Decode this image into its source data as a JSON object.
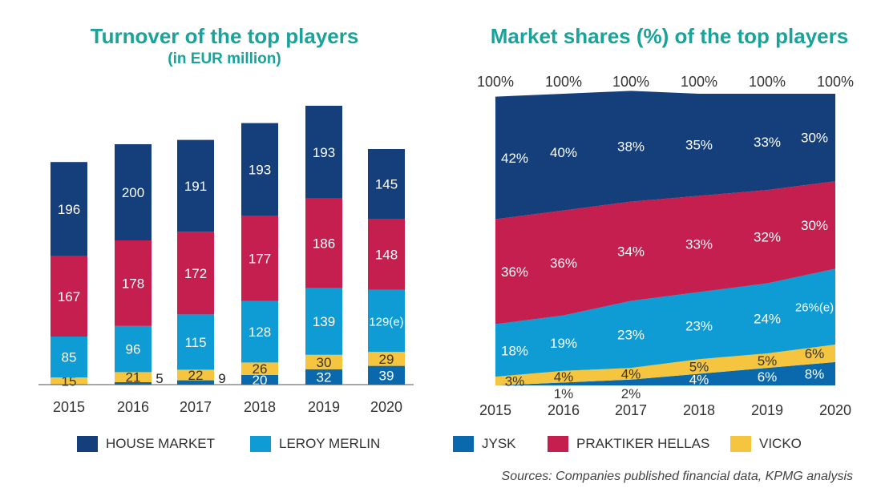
{
  "colors": {
    "house_market": "#143f7a",
    "leroy_merlin": "#0f9bd3",
    "jysk": "#0a68ad",
    "praktiker_hellas": "#c41f4e",
    "vicko": "#f5c540",
    "title": "#1aa39a"
  },
  "chart_data": [
    {
      "type": "bar",
      "stacked": true,
      "title": "Turnover of the top players",
      "subtitle": "(in EUR million)",
      "categories": [
        "2015",
        "2016",
        "2017",
        "2018",
        "2019",
        "2020"
      ],
      "series": [
        {
          "name": "JYSK",
          "values": [
            null,
            5,
            9,
            20,
            32,
            39
          ],
          "labels": [
            "",
            "5",
            "9",
            "20",
            "32",
            "39"
          ]
        },
        {
          "name": "VICKO",
          "values": [
            15,
            21,
            22,
            26,
            30,
            29
          ],
          "labels": [
            "15",
            "21",
            "22",
            "26",
            "30",
            "29"
          ]
        },
        {
          "name": "LEROY MERLIN",
          "values": [
            85,
            96,
            115,
            128,
            139,
            129
          ],
          "labels": [
            "85",
            "96",
            "115",
            "128",
            "139",
            "129(e)"
          ]
        },
        {
          "name": "PRAKTIKER HELLAS",
          "values": [
            167,
            178,
            172,
            177,
            186,
            148
          ],
          "labels": [
            "167",
            "178",
            "172",
            "177",
            "186",
            "148"
          ]
        },
        {
          "name": "HOUSE MARKET",
          "values": [
            196,
            200,
            191,
            193,
            193,
            145
          ],
          "labels": [
            "196",
            "200",
            "191",
            "193",
            "193",
            "145"
          ]
        }
      ]
    },
    {
      "type": "area",
      "stacked": true,
      "title": "Market shares (%) of the top players",
      "categories": [
        "2015",
        "2016",
        "2017",
        "2018",
        "2019",
        "2020"
      ],
      "totals": [
        "100%",
        "100%",
        "100%",
        "100%",
        "100%",
        "100%"
      ],
      "series": [
        {
          "name": "JYSK",
          "values": [
            0,
            1,
            2,
            4,
            6,
            8
          ],
          "labels": [
            "",
            "1%",
            "2%",
            "4%",
            "6%",
            "8%"
          ]
        },
        {
          "name": "VICKO",
          "values": [
            3,
            4,
            4,
            5,
            5,
            6
          ],
          "labels": [
            "3%",
            "4%",
            "4%",
            "5%",
            "5%",
            "6%"
          ]
        },
        {
          "name": "LEROY MERLIN",
          "values": [
            18,
            19,
            23,
            23,
            24,
            26
          ],
          "labels": [
            "18%",
            "19%",
            "23%",
            "23%",
            "24%",
            "26%(e)"
          ]
        },
        {
          "name": "PRAKTIKER HELLAS",
          "values": [
            36,
            36,
            34,
            33,
            32,
            30
          ],
          "labels": [
            "36%",
            "36%",
            "34%",
            "33%",
            "32%",
            "30%"
          ]
        },
        {
          "name": "HOUSE MARKET",
          "values": [
            42,
            40,
            38,
            35,
            33,
            30
          ],
          "labels": [
            "42%",
            "40%",
            "38%",
            "35%",
            "33%",
            "30%"
          ]
        }
      ]
    }
  ],
  "legend": [
    {
      "label": "HOUSE MARKET",
      "color": "#143f7a"
    },
    {
      "label": "LEROY MERLIN",
      "color": "#0f9bd3"
    },
    {
      "label": "JYSK",
      "color": "#0a68ad"
    },
    {
      "label": "PRAKTIKER HELLAS",
      "color": "#c41f4e"
    },
    {
      "label": "VICKO",
      "color": "#f5c540"
    }
  ],
  "sources": "Sources: Companies published financial data, KPMG analysis"
}
